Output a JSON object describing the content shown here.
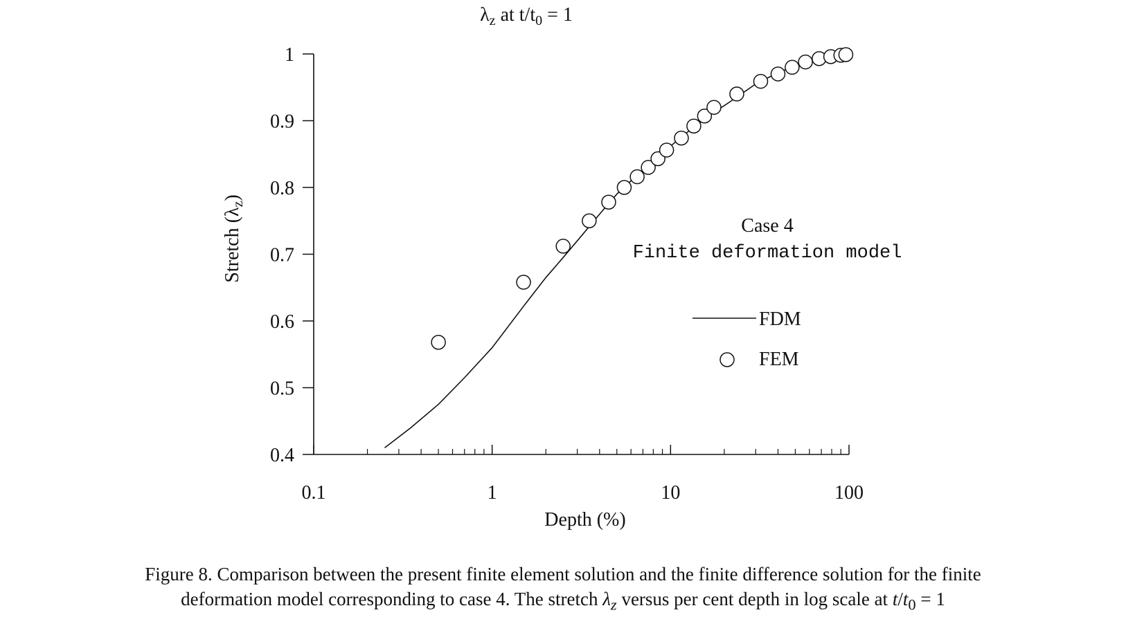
{
  "chart_data": {
    "type": "line",
    "title": "λz at t/t0 = 1",
    "title_parts": {
      "lambda": "λ",
      "sub": "z",
      "mid": " at t/t",
      "sub0": "0",
      "end": " = 1"
    },
    "xlabel": "Depth (%)",
    "ylabel": "Stretch (λz)",
    "ylabel_parts": {
      "pre": "Stretch (λ",
      "sub": "z",
      "post": ")"
    },
    "xscale": "log",
    "xlim": [
      0.1,
      100
    ],
    "ylim": [
      0.4,
      1.0
    ],
    "x_ticks": [
      0.1,
      1,
      10,
      100
    ],
    "x_tick_labels": [
      "0.1",
      "1",
      "10",
      "100"
    ],
    "y_ticks": [
      0.4,
      0.5,
      0.6,
      0.7,
      0.8,
      0.9,
      1.0
    ],
    "y_tick_labels": [
      "0.4",
      "0.5",
      "0.6",
      "0.7",
      "0.8",
      "0.9",
      "1"
    ],
    "grid": false,
    "annotation": {
      "line1": "Case 4",
      "line2": "Finite deformation model"
    },
    "legend": {
      "position": "right",
      "entries": [
        "FDM",
        "FEM"
      ]
    },
    "series": [
      {
        "name": "FDM",
        "style": "line",
        "x": [
          0.25,
          0.35,
          0.5,
          0.7,
          1.0,
          1.5,
          2.0,
          2.5,
          3.0,
          4.0,
          5.0,
          6.0,
          8.0,
          10,
          13,
          17,
          22,
          30,
          40,
          50,
          60,
          70,
          80,
          100
        ],
        "y": [
          0.41,
          0.44,
          0.475,
          0.515,
          0.56,
          0.622,
          0.665,
          0.695,
          0.72,
          0.76,
          0.79,
          0.81,
          0.84,
          0.862,
          0.887,
          0.91,
          0.93,
          0.955,
          0.972,
          0.982,
          0.988,
          0.993,
          0.996,
          0.999
        ]
      },
      {
        "name": "FEM",
        "style": "circle",
        "x": [
          0.5,
          1.5,
          2.5,
          3.5,
          4.5,
          5.5,
          6.5,
          7.5,
          8.5,
          9.5,
          11.5,
          13.5,
          15.5,
          17.5,
          23.5,
          32,
          40,
          48,
          57,
          68,
          79,
          90,
          96
        ],
        "y": [
          0.568,
          0.658,
          0.712,
          0.75,
          0.778,
          0.8,
          0.816,
          0.83,
          0.843,
          0.856,
          0.874,
          0.892,
          0.907,
          0.92,
          0.94,
          0.959,
          0.97,
          0.98,
          0.988,
          0.993,
          0.996,
          0.998,
          0.999
        ]
      }
    ]
  },
  "caption": {
    "line1": "Figure 8. Comparison between the present finite element solution and the finite difference solution for the finite",
    "line2_pre": "deformation model corresponding to case 4. The stretch ",
    "line2_lambda": "λ",
    "line2_sub": "z",
    "line2_mid": " versus per cent depth in log scale at ",
    "line2_t": "t",
    "line2_slash": "/",
    "line2_t0": "t",
    "line2_sub0": "0",
    "line2_end": " = 1"
  }
}
